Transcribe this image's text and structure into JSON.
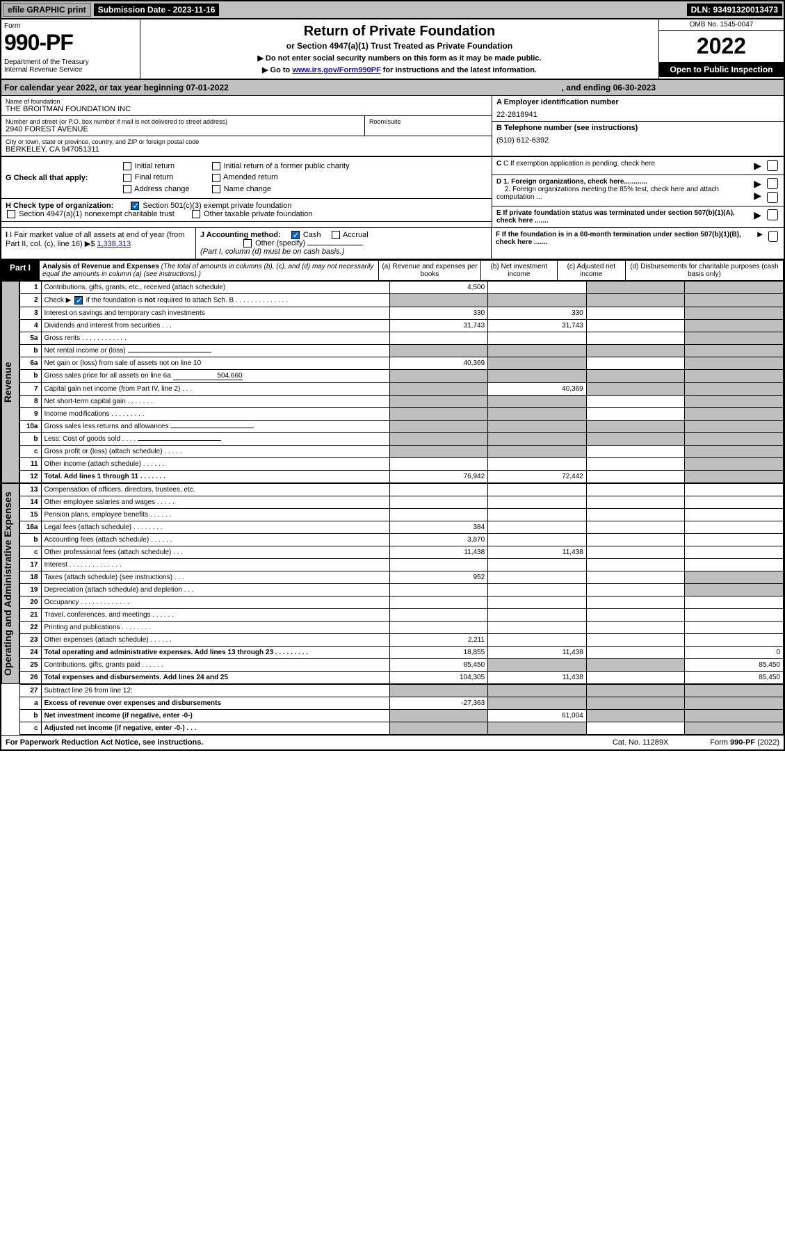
{
  "topbar": {
    "efile": "efile GRAPHIC print",
    "submission_label": "Submission Date - 2023-11-16",
    "dln": "DLN: 93491320013473"
  },
  "header": {
    "form_word": "Form",
    "form_number": "990-PF",
    "dept": "Department of the Treasury\nInternal Revenue Service",
    "title": "Return of Private Foundation",
    "sub1": "or Section 4947(a)(1) Trust Treated as Private Foundation",
    "note1": "▶ Do not enter social security numbers on this form as it may be made public.",
    "note2_pre": "▶ Go to ",
    "note2_link": "www.irs.gov/Form990PF",
    "note2_post": " for instructions and the latest information.",
    "omb": "OMB No. 1545-0047",
    "year": "2022",
    "open": "Open to Public Inspection"
  },
  "calyear": {
    "text_pre": "For calendar year 2022, or tax year beginning 07-01-2022",
    "text_mid": ", and ending 06-30-2023"
  },
  "info": {
    "name_lbl": "Name of foundation",
    "name_val": "THE BROITMAN FOUNDATION INC",
    "addr_lbl": "Number and street (or P.O. box number if mail is not delivered to street address)",
    "addr_val": "2940 FOREST AVENUE",
    "room_lbl": "Room/suite",
    "city_lbl": "City or town, state or province, country, and ZIP or foreign postal code",
    "city_val": "BERKELEY, CA  947051311",
    "ein_lbl": "A Employer identification number",
    "ein_val": "22-2818941",
    "phone_lbl": "B Telephone number (see instructions)",
    "phone_val": "(510) 612-6392",
    "c_lbl": "C If exemption application is pending, check here",
    "d1_lbl": "D 1. Foreign organizations, check here............",
    "d2_lbl": "2. Foreign organizations meeting the 85% test, check here and attach computation ...",
    "e_lbl": "E  If private foundation status was terminated under section 507(b)(1)(A), check here .......",
    "f_lbl": "F  If the foundation is in a 60-month termination under section 507(b)(1)(B), check here .......",
    "g_label": "G Check all that apply:",
    "g_opts": [
      "Initial return",
      "Initial return of a former public charity",
      "Final return",
      "Amended return",
      "Address change",
      "Name change"
    ],
    "h_label": "H Check type of organization:",
    "h_opt1": "Section 501(c)(3) exempt private foundation",
    "h_opt2": "Section 4947(a)(1) nonexempt charitable trust",
    "h_opt3": "Other taxable private foundation",
    "i_label": "I Fair market value of all assets at end of year (from Part II, col. (c), line 16)",
    "i_value": "1,338,313",
    "j_label": "J Accounting method:",
    "j_cash": "Cash",
    "j_accrual": "Accrual",
    "j_other": "Other (specify)",
    "j_note": "(Part I, column (d) must be on cash basis.)"
  },
  "part1": {
    "tab": "Part I",
    "title": "Analysis of Revenue and Expenses",
    "title_note": " (The total of amounts in columns (b), (c), and (d) may not necessarily equal the amounts in column (a) (see instructions).)",
    "cols": {
      "a": "(a)   Revenue and expenses per books",
      "b": "(b)   Net investment income",
      "c": "(c)   Adjusted net income",
      "d": "(d)   Disbursements for charitable purposes (cash basis only)"
    }
  },
  "side_labels": {
    "rev": "Revenue",
    "ops": "Operating and Administrative Expenses"
  },
  "rows": [
    {
      "n": "1",
      "desc": "Contributions, gifts, grants, etc., received (attach schedule)",
      "a": "4,500",
      "b": "",
      "c": "g",
      "d": "g"
    },
    {
      "n": "2",
      "desc": "Check ▶    if the foundation is not required to attach Sch. B   .   .   .   .   .   .   .   .   .   .   .   .   .   .   .",
      "a": "g",
      "b": "g",
      "c": "g",
      "d": "g",
      "chk": true
    },
    {
      "n": "3",
      "desc": "Interest on savings and temporary cash investments",
      "a": "330",
      "b": "330",
      "c": "",
      "d": "g"
    },
    {
      "n": "4",
      "desc": "Dividends and interest from securities   .   .   .",
      "a": "31,743",
      "b": "31,743",
      "c": "",
      "d": "g"
    },
    {
      "n": "5a",
      "desc": "Gross rents   .   .   .   .   .   .   .   .   .   .   .   .",
      "a": "",
      "b": "",
      "c": "",
      "d": "g"
    },
    {
      "n": "b",
      "desc": "Net rental income or (loss)  ",
      "a": "g",
      "b": "g",
      "c": "g",
      "d": "g",
      "inline": true
    },
    {
      "n": "6a",
      "desc": "Net gain or (loss) from sale of assets not on line 10",
      "a": "40,369",
      "b": "g",
      "c": "",
      "d": "g"
    },
    {
      "n": "b",
      "desc": "Gross sales price for all assets on line 6a",
      "a": "g",
      "b": "g",
      "c": "g",
      "d": "g",
      "inline_val": "504,660"
    },
    {
      "n": "7",
      "desc": "Capital gain net income (from Part IV, line 2)   .   .   .",
      "a": "g",
      "b": "40,369",
      "c": "g",
      "d": "g"
    },
    {
      "n": "8",
      "desc": "Net short-term capital gain   .   .   .   .   .   .   .",
      "a": "g",
      "b": "g",
      "c": "",
      "d": "g"
    },
    {
      "n": "9",
      "desc": "Income modifications   .   .   .   .   .   .   .   .   .",
      "a": "g",
      "b": "g",
      "c": "",
      "d": "g"
    },
    {
      "n": "10a",
      "desc": "Gross sales less returns and allowances",
      "a": "g",
      "b": "g",
      "c": "g",
      "d": "g",
      "inline": true
    },
    {
      "n": "b",
      "desc": "Less: Cost of goods sold   .   .   .   .",
      "a": "g",
      "b": "g",
      "c": "g",
      "d": "g",
      "inline": true
    },
    {
      "n": "c",
      "desc": "Gross profit or (loss) (attach schedule)   .   .   .   .   .",
      "a": "g",
      "b": "g",
      "c": "",
      "d": "g"
    },
    {
      "n": "11",
      "desc": "Other income (attach schedule)   .   .   .   .   .   .",
      "a": "",
      "b": "",
      "c": "",
      "d": "g"
    },
    {
      "n": "12",
      "desc": "Total. Add lines 1 through 11   .   .   .   .   .   .   .",
      "a": "76,942",
      "b": "72,442",
      "c": "",
      "d": "g",
      "bold": true
    }
  ],
  "ops_rows": [
    {
      "n": "13",
      "desc": "Compensation of officers, directors, trustees, etc.",
      "a": "",
      "b": "",
      "c": "",
      "d": ""
    },
    {
      "n": "14",
      "desc": "Other employee salaries and wages   .   .   .   .   .",
      "a": "",
      "b": "",
      "c": "",
      "d": ""
    },
    {
      "n": "15",
      "desc": "Pension plans, employee benefits   .   .   .   .   .   .",
      "a": "",
      "b": "",
      "c": "",
      "d": ""
    },
    {
      "n": "16a",
      "desc": "Legal fees (attach schedule)   .   .   .   .   .   .   .   .",
      "a": "384",
      "b": "",
      "c": "",
      "d": ""
    },
    {
      "n": "b",
      "desc": "Accounting fees (attach schedule)   .   .   .   .   .   .",
      "a": "3,870",
      "b": "",
      "c": "",
      "d": ""
    },
    {
      "n": "c",
      "desc": "Other professional fees (attach schedule)   .   .   .",
      "a": "11,438",
      "b": "11,438",
      "c": "",
      "d": ""
    },
    {
      "n": "17",
      "desc": "Interest   .   .   .   .   .   .   .   .   .   .   .   .   .   .",
      "a": "",
      "b": "",
      "c": "",
      "d": ""
    },
    {
      "n": "18",
      "desc": "Taxes (attach schedule) (see instructions)   .   .   .",
      "a": "952",
      "b": "",
      "c": "",
      "d": "g"
    },
    {
      "n": "19",
      "desc": "Depreciation (attach schedule) and depletion   .   .   .",
      "a": "",
      "b": "",
      "c": "",
      "d": "g"
    },
    {
      "n": "20",
      "desc": "Occupancy   .   .   .   .   .   .   .   .   .   .   .   .   .",
      "a": "",
      "b": "",
      "c": "",
      "d": ""
    },
    {
      "n": "21",
      "desc": "Travel, conferences, and meetings   .   .   .   .   .   .",
      "a": "",
      "b": "",
      "c": "",
      "d": ""
    },
    {
      "n": "22",
      "desc": "Printing and publications   .   .   .   .   .   .   .   .",
      "a": "",
      "b": "",
      "c": "",
      "d": ""
    },
    {
      "n": "23",
      "desc": "Other expenses (attach schedule)   .   .   .   .   .   .",
      "a": "2,211",
      "b": "",
      "c": "",
      "d": ""
    },
    {
      "n": "24",
      "desc": "Total operating and administrative expenses. Add lines 13 through 23   .   .   .   .   .   .   .   .   .",
      "a": "18,855",
      "b": "11,438",
      "c": "",
      "d": "0",
      "bold": true
    },
    {
      "n": "25",
      "desc": "Contributions, gifts, grants paid   .   .   .   .   .   .",
      "a": "85,450",
      "b": "g",
      "c": "g",
      "d": "85,450"
    },
    {
      "n": "26",
      "desc": "Total expenses and disbursements. Add lines 24 and 25",
      "a": "104,305",
      "b": "11,438",
      "c": "",
      "d": "85,450",
      "bold": true
    }
  ],
  "final_rows": [
    {
      "n": "27",
      "desc": "Subtract line 26 from line 12:",
      "a": "g",
      "b": "g",
      "c": "g",
      "d": "g"
    },
    {
      "n": "a",
      "desc": "Excess of revenue over expenses and disbursements",
      "a": "-27,363",
      "b": "g",
      "c": "g",
      "d": "g",
      "bold": true
    },
    {
      "n": "b",
      "desc": "Net investment income (if negative, enter -0-)",
      "a": "g",
      "b": "61,004",
      "c": "g",
      "d": "g",
      "bold": true
    },
    {
      "n": "c",
      "desc": "Adjusted net income (if negative, enter -0-)   .   .   .",
      "a": "g",
      "b": "g",
      "c": "",
      "d": "g",
      "bold": true
    }
  ],
  "footer": {
    "left": "For Paperwork Reduction Act Notice, see instructions.",
    "mid": "Cat. No. 11289X",
    "right": "Form 990-PF (2022)"
  }
}
